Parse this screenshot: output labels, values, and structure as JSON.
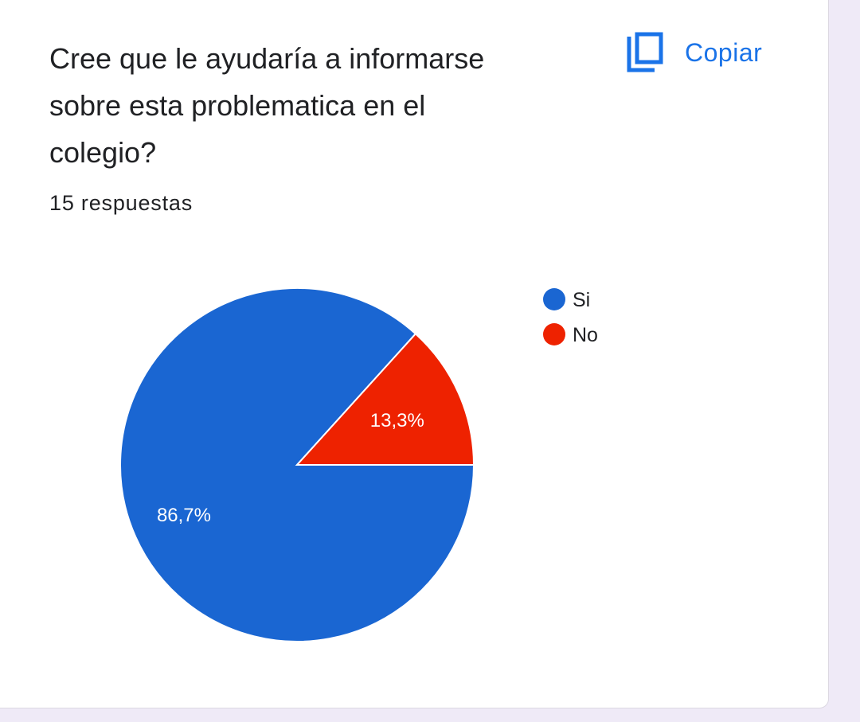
{
  "question": {
    "title_line1": "Cree que le ayudaría a informarse",
    "title_line2": "sobre esta problematica en el",
    "title_line3": "colegio?",
    "response_count": "15 respuestas"
  },
  "actions": {
    "copy_label": "Copiar",
    "copy_icon": "copy-icon"
  },
  "colors": {
    "accent": "#1a73e8",
    "si": "#1a66d2",
    "no": "#ee2200"
  },
  "chart_data": {
    "type": "pie",
    "slices": [
      {
        "name": "Si",
        "value": 86.7,
        "label": "86,7%",
        "color": "#1a66d2"
      },
      {
        "name": "No",
        "value": 13.3,
        "label": "13,3%",
        "color": "#ee2200"
      }
    ],
    "legend": [
      "Si",
      "No"
    ],
    "legend_placement": "right"
  }
}
